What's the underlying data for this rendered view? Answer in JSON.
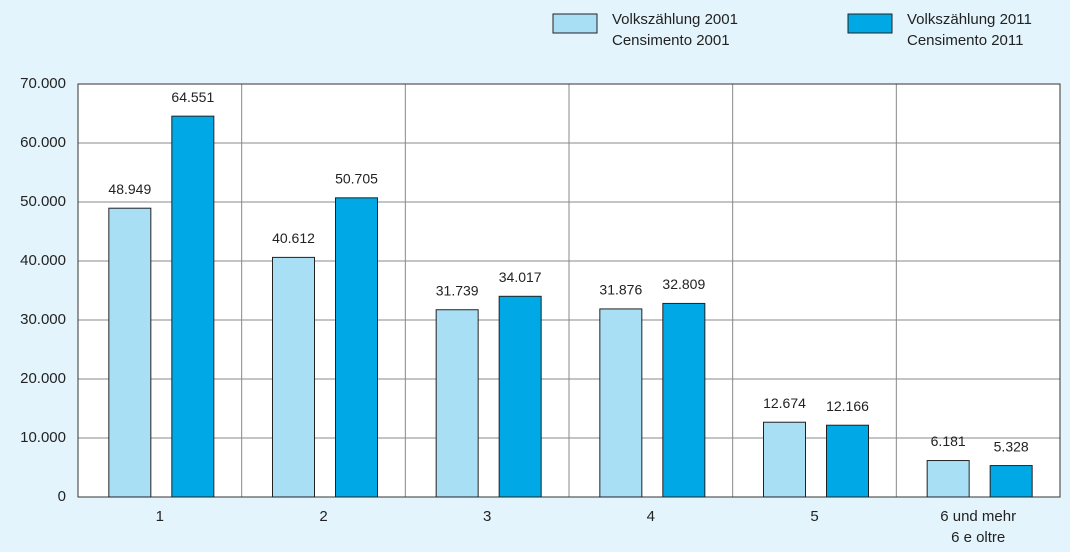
{
  "chart_data": {
    "type": "bar",
    "categories": [
      "1",
      "2",
      "3",
      "4",
      "5",
      "6 und mehr\n6 e oltre"
    ],
    "series": [
      {
        "name": "Volkszählung 2001\nCensimento 2001",
        "color": "#a8dff5",
        "values": [
          48949,
          40612,
          31739,
          31876,
          12674,
          6181
        ],
        "value_labels": [
          "48.949",
          "40.612",
          "31.739",
          "31.876",
          "12.674",
          "6.181"
        ]
      },
      {
        "name": "Volkszählung 2011\nCensimento 2011",
        "color": "#00a9e6",
        "values": [
          64551,
          50705,
          34017,
          32809,
          12166,
          5328
        ],
        "value_labels": [
          "64.551",
          "50.705",
          "34.017",
          "32.809",
          "12.166",
          "5.328"
        ]
      }
    ],
    "ylim": [
      0,
      70000
    ],
    "yticks": [
      0,
      {
        "value": 10000,
        "label": "10.000"
      },
      {
        "value": 20000,
        "label": "20.000"
      },
      {
        "value": 30000,
        "label": "30.000"
      },
      {
        "value": 40000,
        "label": "40.000"
      },
      {
        "value": 50000,
        "label": "50.000"
      },
      {
        "value": 60000,
        "label": "60.000"
      },
      {
        "value": 70000,
        "label": "70.000"
      }
    ],
    "grid": true
  }
}
